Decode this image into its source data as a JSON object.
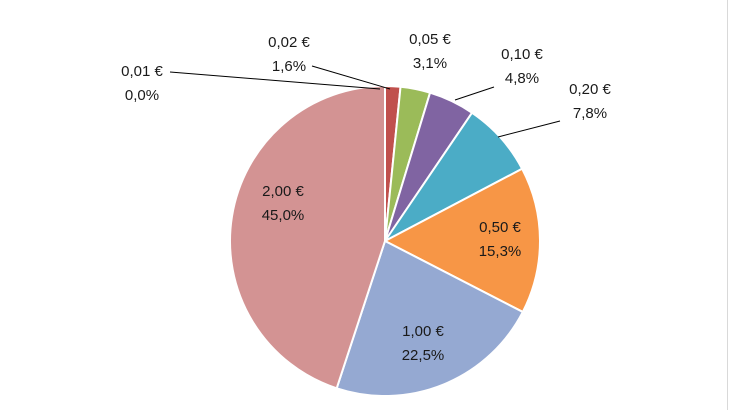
{
  "chart_data": {
    "type": "pie",
    "categories": [
      "0,01 €",
      "0,02 €",
      "0,05 €",
      "0,10 €",
      "0,20 €",
      "0,50 €",
      "1,00 €",
      "2,00 €"
    ],
    "values": [
      0.0,
      1.6,
      3.1,
      4.8,
      7.8,
      15.3,
      22.5,
      45.0
    ],
    "percent_labels": [
      "0,0%",
      "1,6%",
      "3,1%",
      "4,8%",
      "7,8%",
      "15,3%",
      "22,5%",
      "45,0%"
    ],
    "colors": [
      "#4f81bd",
      "#c0504d",
      "#9bbb59",
      "#8064a2",
      "#4bacc6",
      "#f79646",
      "#95a9d2",
      "#d39393"
    ],
    "start_angle_deg": 0,
    "direction": "clockwise",
    "legend": "none",
    "data_labels": "category and percent"
  }
}
